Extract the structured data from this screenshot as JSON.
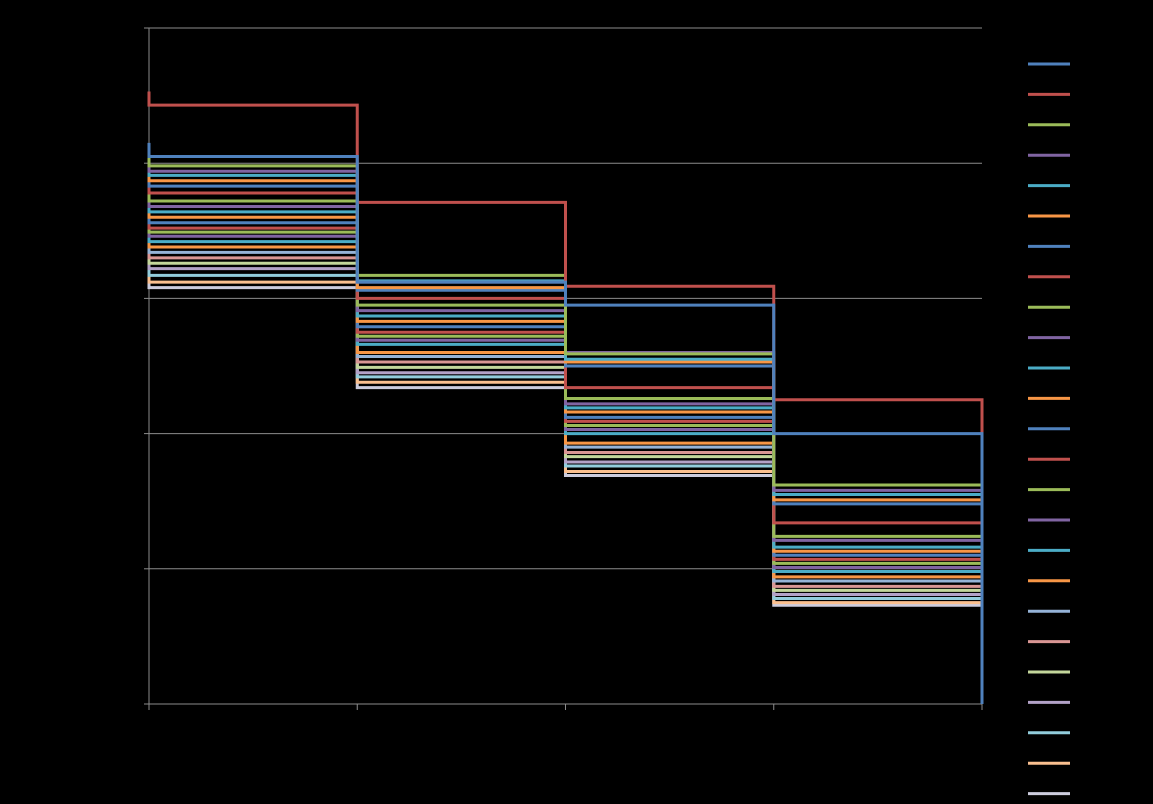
{
  "chart_data": {
    "type": "line",
    "step": true,
    "x": [
      0,
      1,
      2,
      3,
      4
    ],
    "xlim": [
      0,
      4
    ],
    "ylim": [
      0,
      5
    ],
    "yticks": [
      0,
      1,
      2,
      3,
      4,
      5
    ],
    "grid": "horizontal",
    "legend": "right",
    "colors": [
      "#4F81BD",
      "#C0504D",
      "#9BBB59",
      "#8064A2",
      "#4BACC6",
      "#F79646",
      "#4F81BD",
      "#C0504D",
      "#9BBB59",
      "#8064A2",
      "#4BACC6",
      "#F79646",
      "#4F81BD",
      "#C0504D",
      "#9BBB59",
      "#8064A2",
      "#4BACC6",
      "#F79646",
      "#95B3D7",
      "#D99694",
      "#C3D69B",
      "#B3A2C7",
      "#92CDDC",
      "#FAC090",
      "#CCCCDD"
    ],
    "series": [
      {
        "values": [
          4.05,
          3.12,
          2.95,
          2.0,
          0
        ]
      },
      {
        "values": [
          4.43,
          3.71,
          3.09,
          2.25,
          0
        ]
      },
      {
        "values": [
          3.98,
          3.17,
          2.59,
          1.62,
          0
        ]
      },
      {
        "values": [
          3.94,
          3.12,
          2.6,
          1.58,
          0
        ]
      },
      {
        "values": [
          3.91,
          3.13,
          2.55,
          1.55,
          0
        ]
      },
      {
        "values": [
          3.87,
          3.08,
          2.53,
          1.51,
          0
        ]
      },
      {
        "values": [
          3.83,
          3.06,
          2.5,
          1.48,
          0
        ]
      },
      {
        "values": [
          3.78,
          3.0,
          2.34,
          1.34,
          0
        ]
      },
      {
        "values": [
          3.72,
          2.95,
          2.26,
          1.24,
          0
        ]
      },
      {
        "values": [
          3.68,
          2.91,
          2.22,
          1.21,
          0
        ]
      },
      {
        "values": [
          3.64,
          2.87,
          2.19,
          1.16,
          0
        ]
      },
      {
        "values": [
          3.6,
          2.83,
          2.16,
          1.13,
          0
        ]
      },
      {
        "values": [
          3.56,
          2.79,
          2.12,
          1.1,
          0
        ]
      },
      {
        "values": [
          3.52,
          2.75,
          2.09,
          1.07,
          0
        ]
      },
      {
        "values": [
          3.49,
          2.72,
          2.06,
          1.04,
          0
        ]
      },
      {
        "values": [
          3.46,
          2.69,
          2.03,
          1.01,
          0
        ]
      },
      {
        "values": [
          3.42,
          2.66,
          2.0,
          0.98,
          0
        ]
      },
      {
        "values": [
          3.38,
          2.6,
          1.93,
          0.94,
          0
        ]
      },
      {
        "values": [
          3.34,
          2.57,
          1.9,
          0.91,
          0
        ]
      },
      {
        "values": [
          3.3,
          2.53,
          1.86,
          0.87,
          0
        ]
      },
      {
        "values": [
          3.26,
          2.49,
          1.83,
          0.84,
          0
        ]
      },
      {
        "values": [
          3.22,
          2.45,
          1.79,
          0.81,
          0
        ]
      },
      {
        "values": [
          3.17,
          2.42,
          1.76,
          0.78,
          0
        ]
      },
      {
        "values": [
          3.12,
          2.38,
          1.72,
          0.75,
          0
        ]
      },
      {
        "values": [
          3.08,
          2.34,
          1.69,
          0.73,
          0
        ]
      }
    ]
  }
}
